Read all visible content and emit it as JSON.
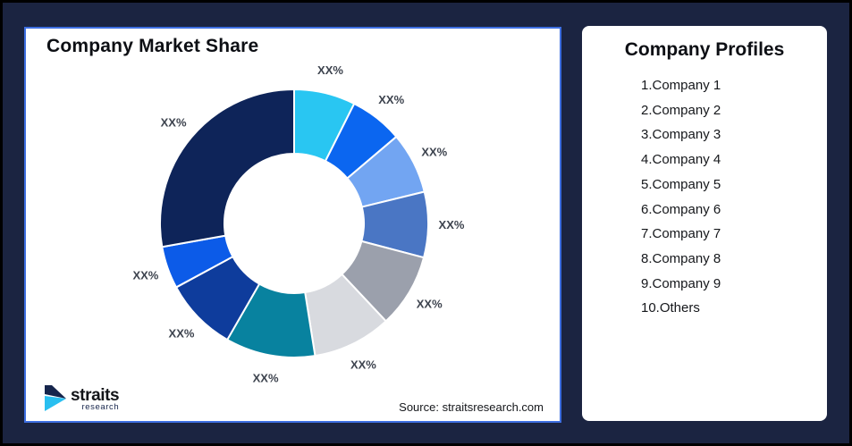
{
  "page": {
    "background_color": "#1B2441",
    "frame_border_color": "#000000"
  },
  "left_card": {
    "title": "Company Market Share",
    "border_color": "#3E6FE1",
    "source_text": "Source: straitsresearch.com",
    "logo": {
      "brand": "straits",
      "subtext": "research",
      "icon_navy_color": "#16254C",
      "icon_cyan_color": "#29BFF0"
    }
  },
  "right_card": {
    "title": "Company Profiles",
    "items": [
      "1.Company 1",
      "2.Company 2",
      "3.Company 3",
      "4.Company 4",
      "5.Company 5",
      "6.Company 6",
      "7.Company 7",
      "8.Company 8",
      "9.Company 9",
      "10.Others"
    ]
  },
  "chart_data": {
    "type": "pie",
    "subtype": "donut",
    "title": "Company Market Share",
    "start_angle_deg": 0,
    "direction": "clockwise",
    "inner_radius_ratio": 0.52,
    "slice_gap_stroke": "#FFFFFF",
    "label_color": "#3D434E",
    "note": "All slice labels shown as placeholder XX%; value_pct estimated from arc angles",
    "segments": [
      {
        "name": "slice-1",
        "label": "XX%",
        "value_pct": 7.4,
        "color": "#29C6F2"
      },
      {
        "name": "slice-2",
        "label": "XX%",
        "value_pct": 6.4,
        "color": "#0B66F0"
      },
      {
        "name": "slice-3",
        "label": "XX%",
        "value_pct": 7.4,
        "color": "#72A5F2"
      },
      {
        "name": "slice-4",
        "label": "XX%",
        "value_pct": 7.9,
        "color": "#4A76C4"
      },
      {
        "name": "slice-5",
        "label": "XX%",
        "value_pct": 8.9,
        "color": "#9BA0AC"
      },
      {
        "name": "slice-6",
        "label": "XX%",
        "value_pct": 9.5,
        "color": "#D8DADF"
      },
      {
        "name": "slice-7",
        "label": "XX%",
        "value_pct": 10.8,
        "color": "#08829F"
      },
      {
        "name": "slice-8",
        "label": "XX%",
        "value_pct": 8.8,
        "color": "#0E3C9C"
      },
      {
        "name": "slice-9",
        "label": "XX%",
        "value_pct": 5.1,
        "color": "#0C5BE8"
      },
      {
        "name": "slice-10",
        "label": "XX%",
        "value_pct": 27.8,
        "color": "#0E2459"
      }
    ]
  }
}
